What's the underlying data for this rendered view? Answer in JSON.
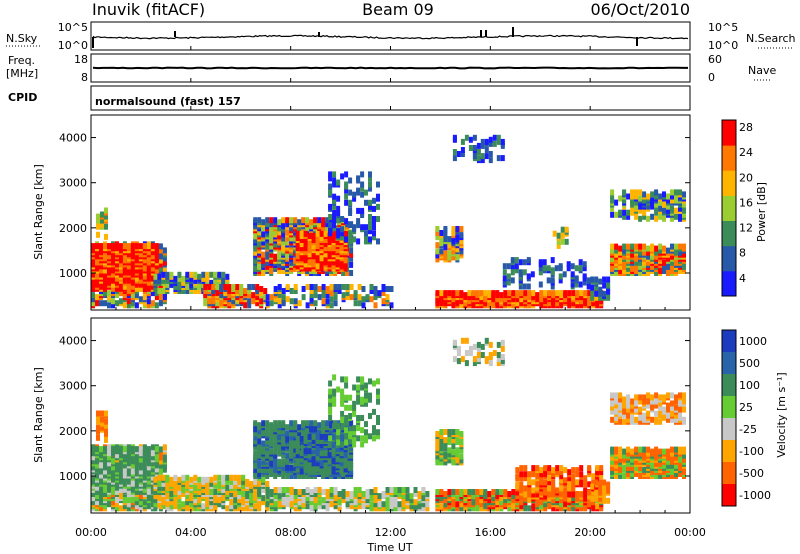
{
  "header": {
    "station": "Inuvik (fitACF)",
    "beam": "Beam 09",
    "date": "06/Oct/2010"
  },
  "noise_panel": {
    "left_label": "N.Sky",
    "right_label": "N.Search",
    "left_ticks": [
      "10^5",
      "10^0"
    ],
    "right_ticks": [
      "10^5",
      "10^0"
    ]
  },
  "freq_panel": {
    "left_label_1": "Freq.",
    "left_label_2": "[MHz]",
    "right_label": "Nave",
    "left_ticks": [
      "18",
      "8"
    ],
    "right_ticks": [
      "60",
      "0"
    ]
  },
  "cpid_panel": {
    "label": "CPID",
    "text": "normalsound (fast) 157"
  },
  "chart_data": [
    {
      "type": "heatmap",
      "name": "power",
      "ylabel": "Slant Range [km]",
      "yticks": [
        "1000",
        "2000",
        "3000",
        "4000"
      ],
      "ylim": [
        180,
        4500
      ],
      "colorbar_label": "Power [dB]",
      "colorbar_ticks": [
        "4",
        "8",
        "12",
        "16",
        "20",
        "24",
        "28"
      ],
      "colors": [
        "#1a1aff",
        "#2858a8",
        "#3c8c5a",
        "#9acd32",
        "#ffb400",
        "#ff7800",
        "#ff0000"
      ]
    },
    {
      "type": "heatmap",
      "name": "velocity",
      "ylabel": "Slant Range [km]",
      "yticks": [
        "1000",
        "2000",
        "3000",
        "4000"
      ],
      "ylim": [
        180,
        4500
      ],
      "colorbar_label": "Velocity [m s⁻¹]",
      "colorbar_ticks": [
        "1000",
        "500",
        "100",
        "25",
        "-25",
        "-100",
        "-500",
        "-1000"
      ],
      "colors": [
        "#1c3cbf",
        "#2a64a8",
        "#3c8c5a",
        "#66cc33",
        "#c8c8c8",
        "#ffa500",
        "#ff6400",
        "#ff0000"
      ]
    }
  ],
  "xaxis": {
    "title": "Time UT",
    "ticks": [
      "00:00",
      "04:00",
      "08:00",
      "12:00",
      "16:00",
      "20:00",
      "00:00"
    ]
  }
}
